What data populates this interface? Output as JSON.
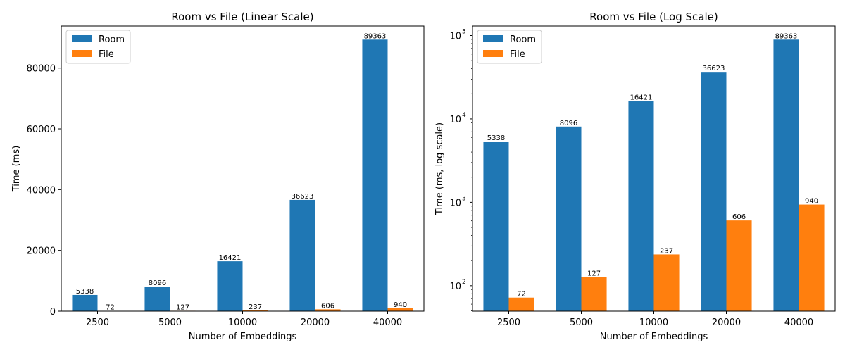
{
  "chart_data": [
    {
      "type": "bar",
      "title": "Room vs File (Linear Scale)",
      "xlabel": "Number of Embeddings",
      "ylabel": "Time (ms)",
      "yscale": "linear",
      "ylim": [
        0,
        93831
      ],
      "yticks": [
        0,
        20000,
        40000,
        60000,
        80000
      ],
      "ytick_labels": [
        "0",
        "20000",
        "40000",
        "60000",
        "80000"
      ],
      "categories": [
        "2500",
        "5000",
        "10000",
        "20000",
        "40000"
      ],
      "series": [
        {
          "name": "Room",
          "color": "#1f77b4",
          "values": [
            5338,
            8096,
            16421,
            36623,
            89363
          ]
        },
        {
          "name": "File",
          "color": "#ff7f0e",
          "values": [
            72,
            127,
            237,
            606,
            940
          ]
        }
      ],
      "legend": "top-left",
      "grid": false,
      "data_labels": true
    },
    {
      "type": "bar",
      "title": "Room vs File (Log Scale)",
      "xlabel": "Number of Embeddings",
      "ylabel": "Time (ms, log scale)",
      "yscale": "log",
      "ylim": [
        49.5,
        130000
      ],
      "yticks": [
        100,
        1000,
        10000,
        100000
      ],
      "ytick_labels": [
        "10",
        "10",
        "10",
        "10"
      ],
      "ytick_exponents": [
        "2",
        "3",
        "4",
        "5"
      ],
      "categories": [
        "2500",
        "5000",
        "10000",
        "20000",
        "40000"
      ],
      "series": [
        {
          "name": "Room",
          "color": "#1f77b4",
          "values": [
            5338,
            8096,
            16421,
            36623,
            89363
          ]
        },
        {
          "name": "File",
          "color": "#ff7f0e",
          "values": [
            72,
            127,
            237,
            606,
            940
          ]
        }
      ],
      "legend": "top-left",
      "grid": false,
      "data_labels": true
    }
  ]
}
